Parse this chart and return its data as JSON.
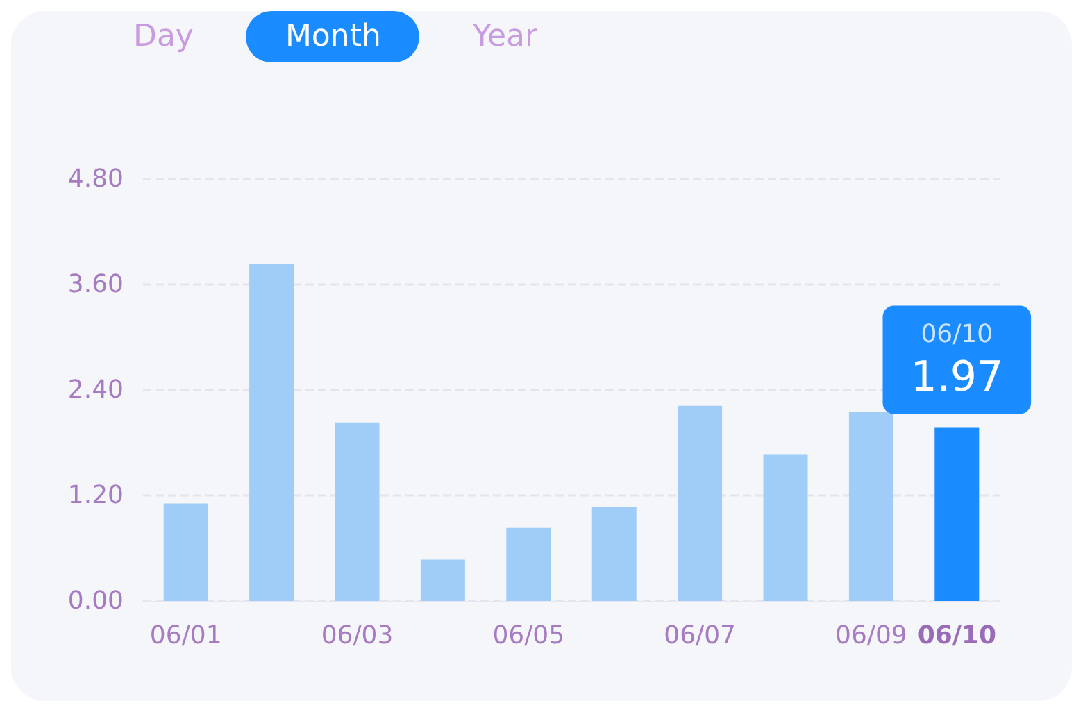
{
  "chart_data": {
    "type": "bar",
    "categories": [
      "06/01",
      null,
      "06/03",
      null,
      "06/05",
      null,
      "06/07",
      null,
      "06/09",
      "06/10"
    ],
    "values": [
      1.11,
      3.83,
      2.03,
      0.47,
      0.83,
      1.07,
      2.22,
      1.67,
      2.15,
      1.97
    ],
    "colors": [
      "#a0cdf7",
      "#a0cdf7",
      "#a0cdf7",
      "#a0cdf7",
      "#a0cdf7",
      "#a0cdf7",
      "#a0cdf7",
      "#a0cdf7",
      "#a0cdf7",
      "#1a8cff"
    ],
    "value_labels": [
      null,
      null,
      null,
      null,
      null,
      null,
      null,
      null,
      null,
      "1.97"
    ],
    "ylim": [
      0,
      4.8
    ],
    "yticks": [
      {
        "value": 0,
        "label": "0.00"
      },
      {
        "value": 1.2,
        "label": "1.20"
      },
      {
        "value": 2.4,
        "label": "2.40"
      },
      {
        "value": 3.6,
        "label": "3.60"
      },
      {
        "value": 4.8,
        "label": "4.80"
      }
    ],
    "grid": "y",
    "annotations": [
      "Day",
      "Month",
      "Year"
    ]
  }
}
